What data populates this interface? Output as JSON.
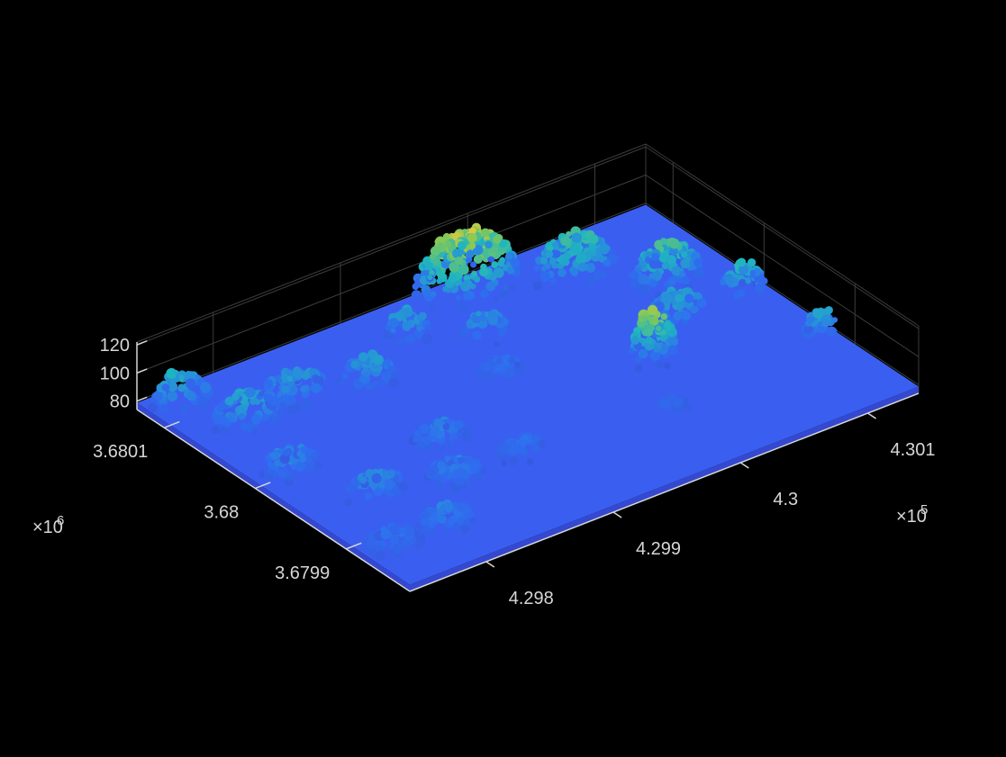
{
  "chart_data": {
    "type": "pointcloud3d",
    "xlim": [
      4.2974,
      4.3014
    ],
    "xticks": [
      4.298,
      4.299,
      4.3,
      4.301
    ],
    "x_exponent": {
      "base": "×10",
      "power": "5"
    },
    "ylim": [
      3.67983,
      3.68013
    ],
    "yticks": [
      3.6799,
      3.68,
      3.6801
    ],
    "y_exponent": {
      "base": "×10",
      "power": "6"
    },
    "zlim": [
      74,
      122
    ],
    "zticks": [
      80,
      100,
      120
    ]
  }
}
